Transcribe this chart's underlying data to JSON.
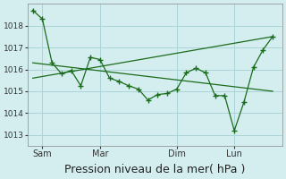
{
  "background_color": "#d4eef0",
  "grid_color": "#aad4d8",
  "line_color": "#1a6b1a",
  "marker_color": "#1a6b1a",
  "series1_x": [
    0,
    1,
    2,
    3,
    4,
    5,
    6,
    7,
    8,
    9,
    10,
    11,
    12,
    13,
    14,
    15,
    16,
    17,
    18,
    19,
    20,
    21,
    22,
    23,
    24,
    25
  ],
  "series1_y": [
    1018.7,
    1018.3,
    1016.3,
    1015.8,
    1015.95,
    1015.25,
    1016.55,
    1016.45,
    1015.6,
    1015.45,
    1015.25,
    1015.1,
    1014.6,
    1014.85,
    1014.9,
    1015.1,
    1015.85,
    1016.05,
    1015.85,
    1014.8,
    1014.8,
    1013.2,
    1014.5,
    1016.1,
    1016.9,
    1017.5
  ],
  "trend1_x": [
    0,
    25
  ],
  "trend1_y": [
    1016.3,
    1015.0
  ],
  "trend2_x": [
    0,
    25
  ],
  "trend2_y": [
    1015.6,
    1017.5
  ],
  "yticks": [
    1013,
    1014,
    1015,
    1016,
    1017,
    1018
  ],
  "ylim": [
    1012.5,
    1019.0
  ],
  "xlim": [
    -0.5,
    26
  ],
  "xtick_positions": [
    1,
    7,
    15,
    21
  ],
  "xtick_labels": [
    "Sam",
    "Mar",
    "Dim",
    "Lun"
  ],
  "xlabel": "Pression niveau de la mer( hPa )",
  "xlabel_fontsize": 9
}
